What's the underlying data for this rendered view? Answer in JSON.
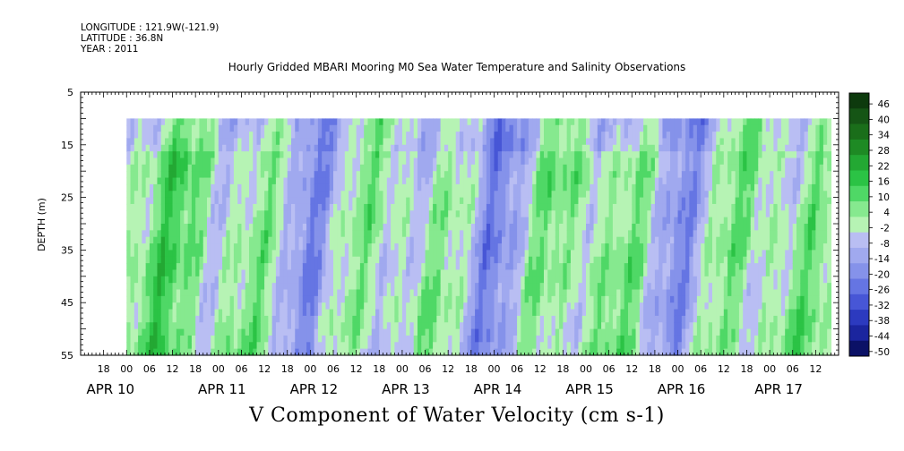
{
  "header": {
    "longitude": "LONGITUDE : 121.9W(-121.9)",
    "latitude": "LATITUDE : 36.8N",
    "year": "YEAR : 2011"
  },
  "chart_data": {
    "type": "heatmap",
    "title": "Hourly Gridded MBARI Mooring M0 Sea Water Temperature and Salinity Observations",
    "xlabel": "V Component of Water Velocity (cm s-1)",
    "ylabel": "DEPTH (m)",
    "y_ticks": [
      5,
      15,
      25,
      35,
      45,
      55
    ],
    "y_range": [
      5,
      55
    ],
    "y_inverted": true,
    "data_depth_range": [
      10,
      55
    ],
    "x_range_hours": [
      "APR 09 12:00",
      "APR 17 18:00"
    ],
    "x_hour_ticks": [
      "18",
      "00",
      "06",
      "12",
      "18",
      "00",
      "06",
      "12",
      "18",
      "00",
      "06",
      "12",
      "18",
      "00",
      "06",
      "12",
      "18",
      "00",
      "06",
      "12",
      "18",
      "00",
      "06",
      "12",
      "18",
      "00",
      "06",
      "12",
      "18",
      "00",
      "06",
      "12"
    ],
    "x_date_labels": [
      "APR 10",
      "APR 11",
      "APR 12",
      "APR 13",
      "APR 14",
      "APR 15",
      "APR 16",
      "APR 17"
    ],
    "colorbar": {
      "ticks": [
        46,
        40,
        34,
        28,
        22,
        16,
        10,
        4,
        -2,
        -8,
        -14,
        -20,
        -26,
        -32,
        -38,
        -44,
        -50
      ],
      "range": [
        -50,
        50
      ],
      "levels": [
        {
          "lo": 46,
          "hi": 52,
          "color": "#0d3a0d"
        },
        {
          "lo": 40,
          "hi": 46,
          "color": "#155515"
        },
        {
          "lo": 34,
          "hi": 40,
          "color": "#1a6e1a"
        },
        {
          "lo": 28,
          "hi": 34,
          "color": "#1e8a24"
        },
        {
          "lo": 22,
          "hi": 28,
          "color": "#23a833"
        },
        {
          "lo": 16,
          "hi": 22,
          "color": "#2bc345"
        },
        {
          "lo": 10,
          "hi": 16,
          "color": "#4fd866"
        },
        {
          "lo": 4,
          "hi": 10,
          "color": "#86e98f"
        },
        {
          "lo": -2,
          "hi": 4,
          "color": "#b6f3b4"
        },
        {
          "lo": -8,
          "hi": -2,
          "color": "#b9bef3"
        },
        {
          "lo": -14,
          "hi": -8,
          "color": "#a0a9ef"
        },
        {
          "lo": -20,
          "hi": -14,
          "color": "#8592ea"
        },
        {
          "lo": -26,
          "hi": -20,
          "color": "#6575e3"
        },
        {
          "lo": -32,
          "hi": -26,
          "color": "#4756d6"
        },
        {
          "lo": -38,
          "hi": -32,
          "color": "#2c3abf"
        },
        {
          "lo": -44,
          "hi": -38,
          "color": "#1b259e"
        },
        {
          "lo": -50,
          "hi": -44,
          "color": "#0b1166"
        }
      ]
    },
    "field_pattern": {
      "note_values": "approximate, cm s-1",
      "day_boundaries_values": [
        8,
        6,
        -10,
        6,
        -12,
        10,
        -10,
        8,
        -6
      ]
    }
  }
}
